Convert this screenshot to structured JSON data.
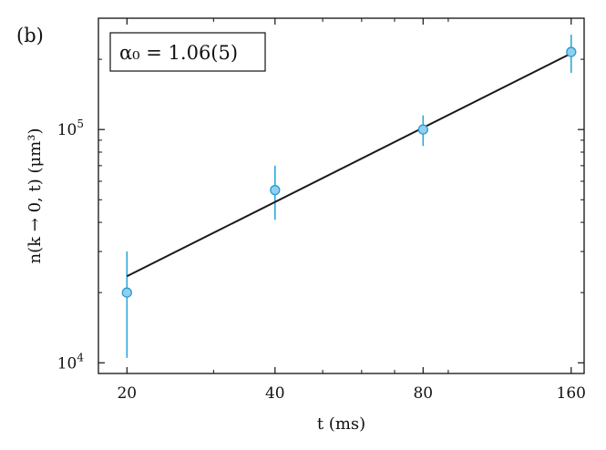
{
  "panel_label": "(b)",
  "chart_data": {
    "type": "scatter",
    "annotation": "α₀ = 1.06(5)",
    "xlabel": "t (ms)",
    "ylabel": "n(k → 0, t) (μm³)",
    "xscale": "log",
    "yscale": "log",
    "xlim": [
      17.5,
      170
    ],
    "ylim": [
      9000,
      300000
    ],
    "x_ticks": [
      {
        "value": 20,
        "label": "20"
      },
      {
        "value": 40,
        "label": "40"
      },
      {
        "value": 80,
        "label": "80"
      },
      {
        "value": 160,
        "label": "160"
      }
    ],
    "y_ticks": [
      {
        "value": 10000,
        "base": "10",
        "exp": "4"
      },
      {
        "value": 100000,
        "base": "10",
        "exp": "5"
      }
    ],
    "grid": false,
    "legend": "none",
    "points": [
      {
        "x": 20,
        "y": 20000,
        "y_err_low": 10500,
        "y_err_high": 30000
      },
      {
        "x": 40,
        "y": 55000,
        "y_err_low": 41000,
        "y_err_high": 70000
      },
      {
        "x": 80,
        "y": 100000,
        "y_err_low": 85000,
        "y_err_high": 115000
      },
      {
        "x": 160,
        "y": 215000,
        "y_err_low": 175000,
        "y_err_high": 255000
      }
    ],
    "fit_line": {
      "x": [
        20,
        160
      ],
      "y": [
        23500,
        212000
      ]
    },
    "colors": {
      "marker_fill": "#8fd0ef",
      "marker_edge": "#2b9ad1",
      "errorbar": "#2ea8db",
      "fit_line": "#1a1a1a",
      "axes": "#111111"
    }
  }
}
